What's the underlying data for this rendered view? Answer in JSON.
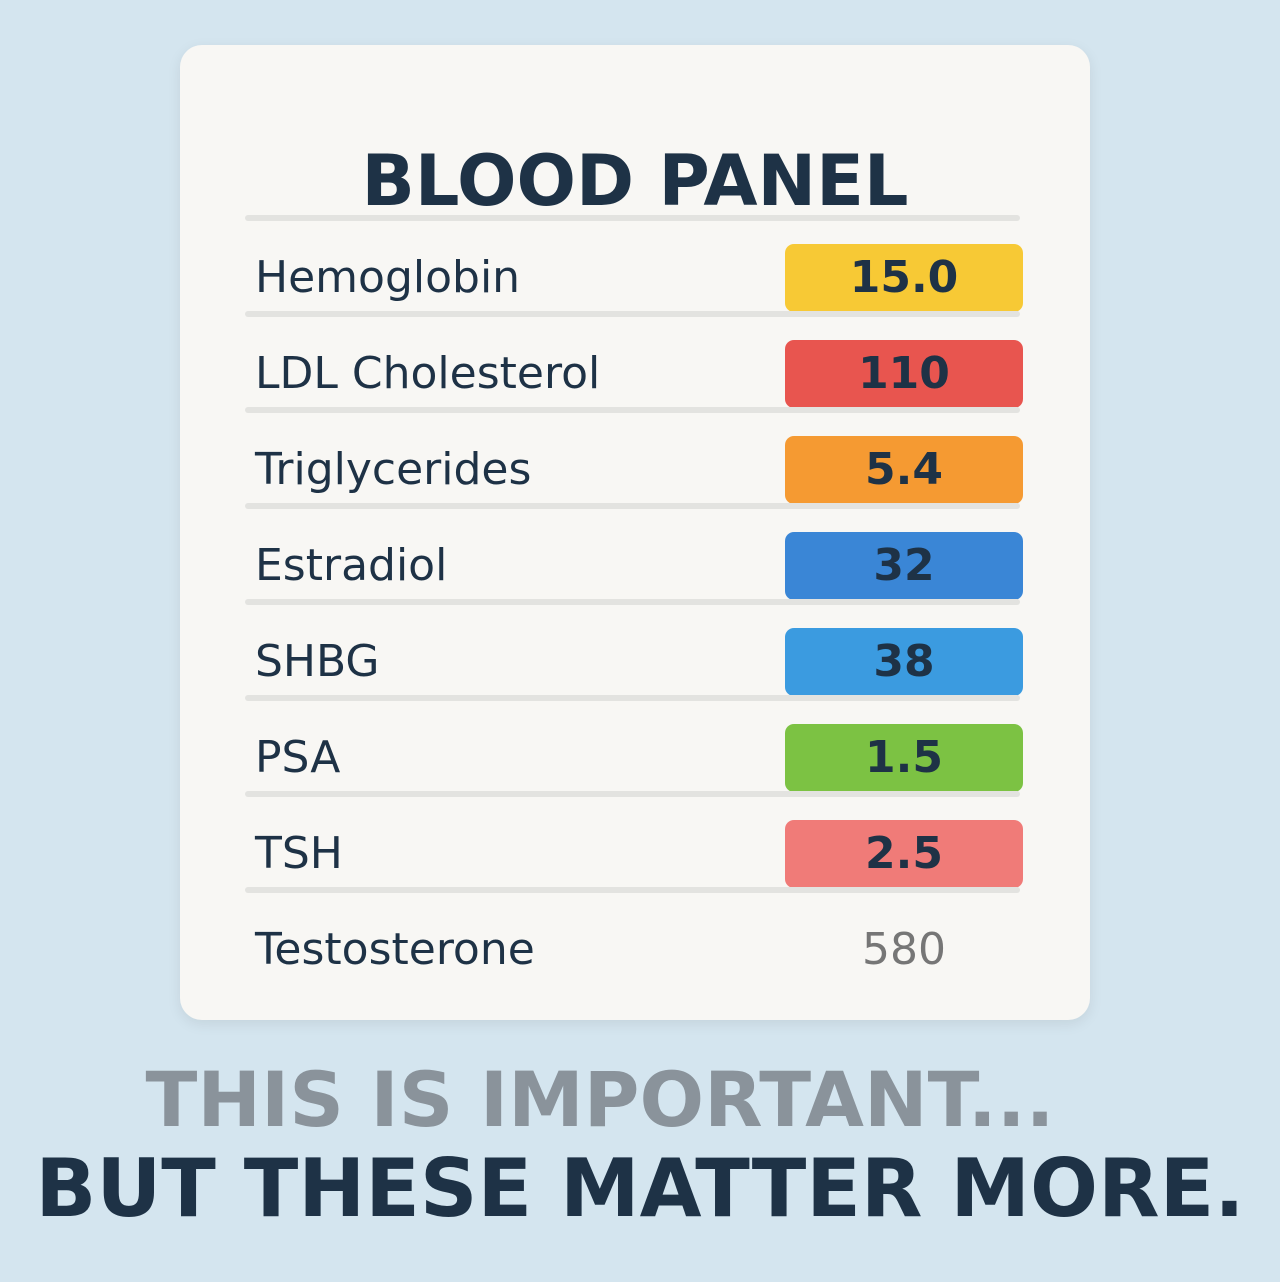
{
  "card": {
    "title": "BLOOD PANEL",
    "rows": [
      {
        "label": "Hemoglobin",
        "value": "15.0",
        "color": "#f7c935"
      },
      {
        "label": "LDL Cholesterol",
        "value": "110",
        "color": "#e8554f"
      },
      {
        "label": "Triglycerides",
        "value": "5.4",
        "color": "#f59a32"
      },
      {
        "label": "Estradiol",
        "value": "32",
        "color": "#3a86d6"
      },
      {
        "label": "SHBG",
        "value": "38",
        "color": "#3b9be0"
      },
      {
        "label": "PSA",
        "value": "1.5",
        "color": "#7cc243"
      },
      {
        "label": "TSH",
        "value": "2.5",
        "color": "#f07b78"
      },
      {
        "label": "Testosterone",
        "value": "580"
      }
    ]
  },
  "footer": {
    "line1": "THIS IS IMPORTANT...",
    "line2": "BUT THESE MATTER MORE."
  }
}
